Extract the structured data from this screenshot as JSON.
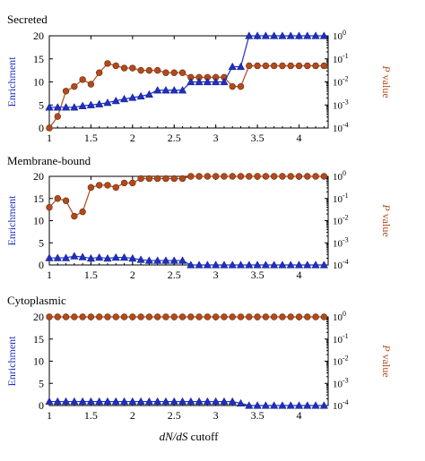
{
  "chart_data": [
    {
      "type": "line",
      "title": "Secreted",
      "ylabel_left": "Enrichment",
      "ylabel_right_italic": "P",
      "ylabel_right_rest": " value",
      "xlim": [
        1,
        4.35
      ],
      "ylim_left": [
        0,
        20
      ],
      "ylim_right_log10": [
        -4,
        0
      ],
      "x_ticks": [
        "1",
        "1.5",
        "2",
        "2.5",
        "3",
        "3.5",
        "4"
      ],
      "y_ticks_left": [
        "0",
        "5",
        "10",
        "15",
        "20"
      ],
      "y_ticks_right": [
        "-4",
        "-3",
        "-2",
        "-1",
        "0"
      ],
      "enrichment_color": "#1f2fbf",
      "pvalue_color": "#b24a1c",
      "x": [
        1.0,
        1.1,
        1.2,
        1.3,
        1.4,
        1.5,
        1.6,
        1.7,
        1.8,
        1.9,
        2.0,
        2.1,
        2.2,
        2.3,
        2.4,
        2.5,
        2.6,
        2.7,
        2.8,
        2.9,
        3.0,
        3.1,
        3.2,
        3.3,
        3.4,
        3.5,
        3.6,
        3.7,
        3.8,
        3.9,
        4.0,
        4.1,
        4.2,
        4.3
      ],
      "enrichment": [
        4.5,
        4.5,
        4.5,
        4.5,
        4.8,
        5.0,
        5.2,
        5.5,
        5.9,
        6.3,
        6.6,
        6.9,
        7.3,
        8.2,
        8.2,
        8.2,
        8.2,
        10.0,
        10.0,
        10.0,
        10.0,
        10.0,
        13.3,
        13.3,
        20.0,
        20.0,
        20.0,
        20.0,
        20.0,
        20.0,
        20.0,
        20.0,
        20.0,
        20.0
      ],
      "p_value_log10": [
        -4.0,
        -3.5,
        -2.4,
        -2.2,
        -1.9,
        -2.1,
        -1.6,
        -1.2,
        -1.3,
        -1.4,
        -1.4,
        -1.5,
        -1.5,
        -1.5,
        -1.6,
        -1.6,
        -1.6,
        -1.8,
        -1.8,
        -1.8,
        -1.8,
        -1.8,
        -2.2,
        -2.2,
        -1.3,
        -1.3,
        -1.3,
        -1.3,
        -1.3,
        -1.3,
        -1.3,
        -1.3,
        -1.3,
        -1.3
      ]
    },
    {
      "type": "line",
      "title": "Membrane-bound",
      "ylabel_left": "Enrichment",
      "ylabel_right_italic": "P",
      "ylabel_right_rest": " value",
      "xlim": [
        1,
        4.35
      ],
      "ylim_left": [
        0,
        20
      ],
      "ylim_right_log10": [
        -4,
        0
      ],
      "x_ticks": [
        "1",
        "1.5",
        "2",
        "2.5",
        "3",
        "3.5",
        "4"
      ],
      "y_ticks_left": [
        "0",
        "5",
        "10",
        "15",
        "20"
      ],
      "y_ticks_right": [
        "-4",
        "-3",
        "-2",
        "-1",
        "0"
      ],
      "enrichment_color": "#1f2fbf",
      "pvalue_color": "#b24a1c",
      "x": [
        1.0,
        1.1,
        1.2,
        1.3,
        1.4,
        1.5,
        1.6,
        1.7,
        1.8,
        1.9,
        2.0,
        2.1,
        2.2,
        2.3,
        2.4,
        2.5,
        2.6,
        2.7,
        2.8,
        2.9,
        3.0,
        3.1,
        3.2,
        3.3,
        3.4,
        3.5,
        3.6,
        3.7,
        3.8,
        3.9,
        4.0,
        4.1,
        4.2,
        4.3
      ],
      "enrichment": [
        1.6,
        1.6,
        1.6,
        2.0,
        1.8,
        1.5,
        1.7,
        1.5,
        1.7,
        1.7,
        1.5,
        1.2,
        1.0,
        1.0,
        1.0,
        1.0,
        1.0,
        0.0,
        0.0,
        0.0,
        0.0,
        0.0,
        0.0,
        0.0,
        0.0,
        0.0,
        0.0,
        0.0,
        0.0,
        0.0,
        0.0,
        0.0,
        0.0,
        0.0
      ],
      "p_value_log10": [
        -1.4,
        -1.0,
        -1.1,
        -1.8,
        -1.6,
        -0.5,
        -0.4,
        -0.4,
        -0.5,
        -0.3,
        -0.3,
        -0.1,
        -0.1,
        -0.1,
        -0.1,
        -0.1,
        -0.1,
        0.0,
        0.0,
        0.0,
        0.0,
        0.0,
        0.0,
        0.0,
        0.0,
        0.0,
        0.0,
        0.0,
        0.0,
        0.0,
        0.0,
        0.0,
        0.0,
        0.0
      ]
    },
    {
      "type": "line",
      "title": "Cytoplasmic",
      "ylabel_left": "Enrichment",
      "ylabel_right_italic": "P",
      "ylabel_right_rest": " value",
      "xlabel_italic": "dN/dS",
      "xlabel_rest": " cutoff",
      "xlim": [
        1,
        4.35
      ],
      "ylim_left": [
        0,
        20
      ],
      "ylim_right_log10": [
        -4,
        0
      ],
      "x_ticks": [
        "1",
        "1.5",
        "2",
        "2.5",
        "3",
        "3.5",
        "4"
      ],
      "y_ticks_left": [
        "0",
        "5",
        "10",
        "15",
        "20"
      ],
      "y_ticks_right": [
        "-4",
        "-3",
        "-2",
        "-1",
        "0"
      ],
      "enrichment_color": "#1f2fbf",
      "pvalue_color": "#b24a1c",
      "x": [
        1.0,
        1.1,
        1.2,
        1.3,
        1.4,
        1.5,
        1.6,
        1.7,
        1.8,
        1.9,
        2.0,
        2.1,
        2.2,
        2.3,
        2.4,
        2.5,
        2.6,
        2.7,
        2.8,
        2.9,
        3.0,
        3.1,
        3.2,
        3.3,
        3.4,
        3.5,
        3.6,
        3.7,
        3.8,
        3.9,
        4.0,
        4.1,
        4.2,
        4.3
      ],
      "enrichment": [
        0.9,
        0.9,
        0.9,
        0.9,
        0.9,
        0.9,
        0.9,
        0.9,
        0.9,
        0.9,
        0.9,
        0.9,
        0.9,
        0.9,
        0.9,
        0.9,
        0.9,
        0.9,
        0.9,
        0.9,
        0.9,
        0.9,
        0.9,
        0.5,
        0.0,
        0.0,
        0.0,
        0.0,
        0.0,
        0.0,
        0.0,
        0.0,
        0.0,
        0.0
      ],
      "p_value_log10": [
        0.0,
        0.0,
        0.0,
        0.0,
        0.0,
        0.0,
        0.0,
        0.0,
        0.0,
        0.0,
        0.0,
        0.0,
        0.0,
        0.0,
        0.0,
        0.0,
        0.0,
        0.0,
        0.0,
        0.0,
        0.0,
        0.0,
        0.0,
        0.0,
        0.0,
        0.0,
        0.0,
        0.0,
        0.0,
        0.0,
        0.0,
        0.0,
        0.0,
        0.0
      ]
    }
  ]
}
